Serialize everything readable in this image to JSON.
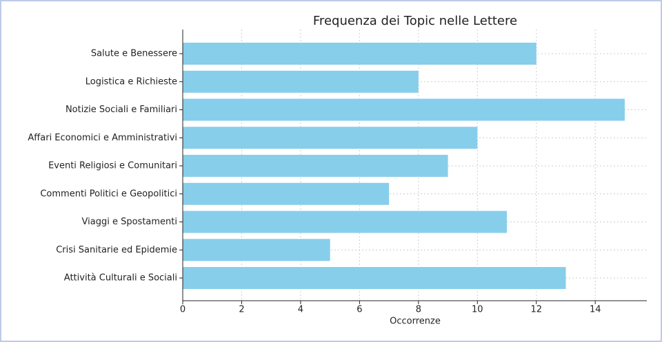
{
  "chart_data": {
    "type": "barh",
    "title": "Frequenza dei Topic nelle Lettere",
    "x_label": "Occorrenze",
    "categories": [
      "Salute e Benessere",
      "Logistica e Richieste",
      "Notizie Sociali e Familiari",
      "Affari Economici e Amministrativi",
      "Eventi Religiosi e Comunitari",
      "Commenti Politici e Geopolitici",
      "Viaggi e Spostamenti",
      "Crisi Sanitarie ed Epidemie",
      "Attività Culturali e Sociali"
    ],
    "values": [
      12,
      8,
      15,
      10,
      9,
      7,
      11,
      5,
      13
    ],
    "color": "#87ceeb",
    "xlim": [
      0,
      15.75
    ],
    "xticks": [
      0,
      2,
      4,
      6,
      8,
      10,
      12,
      14
    ],
    "grid": true
  }
}
